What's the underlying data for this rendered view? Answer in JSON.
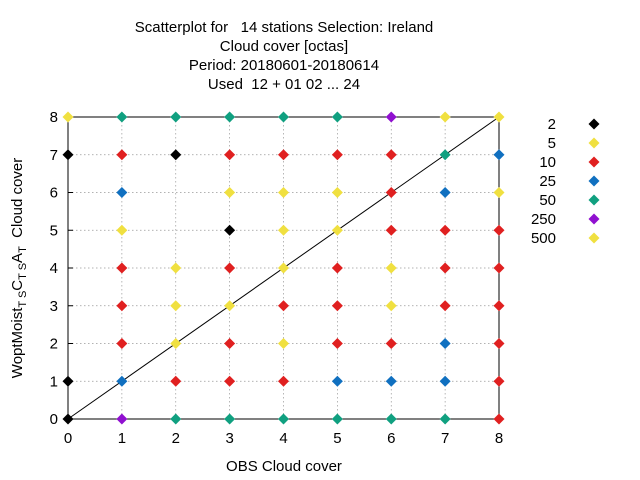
{
  "chart_data": {
    "type": "scatter",
    "title_lines": [
      "Scatterplot for   14 stations Selection: Ireland",
      "Cloud cover [octas]",
      "Period: 20180601-20180614",
      "Used  12 + 01 02 ... 24"
    ],
    "xlabel": "OBS Cloud cover",
    "ylabel_parts": [
      "WoptMoist",
      "T S",
      "C",
      "T S",
      "A",
      "T",
      "  Cloud cover"
    ],
    "xlim": [
      0,
      8
    ],
    "ylim": [
      0,
      8
    ],
    "xticks": [
      "0",
      "1",
      "2",
      "3",
      "4",
      "5",
      "6",
      "7",
      "8"
    ],
    "yticks": [
      "0",
      "1",
      "2",
      "3",
      "4",
      "5",
      "6",
      "7",
      "8"
    ],
    "grid": true,
    "diagonal": true,
    "legend_position": "right",
    "legend": [
      {
        "label": "2",
        "color": "#000000"
      },
      {
        "label": "5",
        "color": "#f0e040"
      },
      {
        "label": "10",
        "color": "#e02020"
      },
      {
        "label": "25",
        "color": "#1070c0"
      },
      {
        "label": "50",
        "color": "#10a080"
      },
      {
        "label": "250",
        "color": "#9010d0"
      },
      {
        "label": "500",
        "color": "#f0e040"
      }
    ],
    "points": [
      [
        0,
        8,
        "#f0e040"
      ],
      [
        1,
        8,
        "#10a080"
      ],
      [
        2,
        8,
        "#10a080"
      ],
      [
        3,
        8,
        "#10a080"
      ],
      [
        4,
        8,
        "#10a080"
      ],
      [
        5,
        8,
        "#10a080"
      ],
      [
        6,
        8,
        "#9010d0"
      ],
      [
        7,
        8,
        "#f0e040"
      ],
      [
        8,
        8,
        "#f0e040"
      ],
      [
        0,
        7,
        "#000000"
      ],
      [
        1,
        7,
        "#e02020"
      ],
      [
        2,
        7,
        "#000000"
      ],
      [
        3,
        7,
        "#e02020"
      ],
      [
        4,
        7,
        "#e02020"
      ],
      [
        5,
        7,
        "#e02020"
      ],
      [
        6,
        7,
        "#e02020"
      ],
      [
        7,
        7,
        "#10a080"
      ],
      [
        8,
        7,
        "#1070c0"
      ],
      [
        1,
        6,
        "#1070c0"
      ],
      [
        3,
        6,
        "#f0e040"
      ],
      [
        4,
        6,
        "#f0e040"
      ],
      [
        5,
        6,
        "#f0e040"
      ],
      [
        6,
        6,
        "#e02020"
      ],
      [
        7,
        6,
        "#1070c0"
      ],
      [
        8,
        6,
        "#f0e040"
      ],
      [
        1,
        5,
        "#f0e040"
      ],
      [
        3,
        5,
        "#000000"
      ],
      [
        4,
        5,
        "#f0e040"
      ],
      [
        5,
        5,
        "#f0e040"
      ],
      [
        6,
        5,
        "#e02020"
      ],
      [
        7,
        5,
        "#e02020"
      ],
      [
        8,
        5,
        "#e02020"
      ],
      [
        1,
        4,
        "#e02020"
      ],
      [
        2,
        4,
        "#f0e040"
      ],
      [
        3,
        4,
        "#e02020"
      ],
      [
        4,
        4,
        "#f0e040"
      ],
      [
        5,
        4,
        "#e02020"
      ],
      [
        6,
        4,
        "#f0e040"
      ],
      [
        7,
        4,
        "#e02020"
      ],
      [
        8,
        4,
        "#e02020"
      ],
      [
        1,
        3,
        "#e02020"
      ],
      [
        2,
        3,
        "#f0e040"
      ],
      [
        3,
        3,
        "#f0e040"
      ],
      [
        4,
        3,
        "#e02020"
      ],
      [
        5,
        3,
        "#e02020"
      ],
      [
        6,
        3,
        "#f0e040"
      ],
      [
        7,
        3,
        "#e02020"
      ],
      [
        8,
        3,
        "#e02020"
      ],
      [
        1,
        2,
        "#e02020"
      ],
      [
        2,
        2,
        "#f0e040"
      ],
      [
        3,
        2,
        "#e02020"
      ],
      [
        4,
        2,
        "#f0e040"
      ],
      [
        5,
        2,
        "#e02020"
      ],
      [
        6,
        2,
        "#e02020"
      ],
      [
        7,
        2,
        "#1070c0"
      ],
      [
        8,
        2,
        "#e02020"
      ],
      [
        0,
        1,
        "#000000"
      ],
      [
        1,
        1,
        "#1070c0"
      ],
      [
        2,
        1,
        "#e02020"
      ],
      [
        3,
        1,
        "#e02020"
      ],
      [
        4,
        1,
        "#e02020"
      ],
      [
        5,
        1,
        "#1070c0"
      ],
      [
        6,
        1,
        "#1070c0"
      ],
      [
        7,
        1,
        "#1070c0"
      ],
      [
        8,
        1,
        "#e02020"
      ],
      [
        0,
        0,
        "#000000"
      ],
      [
        1,
        0,
        "#9010d0"
      ],
      [
        2,
        0,
        "#10a080"
      ],
      [
        3,
        0,
        "#10a080"
      ],
      [
        4,
        0,
        "#10a080"
      ],
      [
        5,
        0,
        "#10a080"
      ],
      [
        6,
        0,
        "#10a080"
      ],
      [
        7,
        0,
        "#10a080"
      ],
      [
        8,
        0,
        "#e02020"
      ]
    ]
  }
}
